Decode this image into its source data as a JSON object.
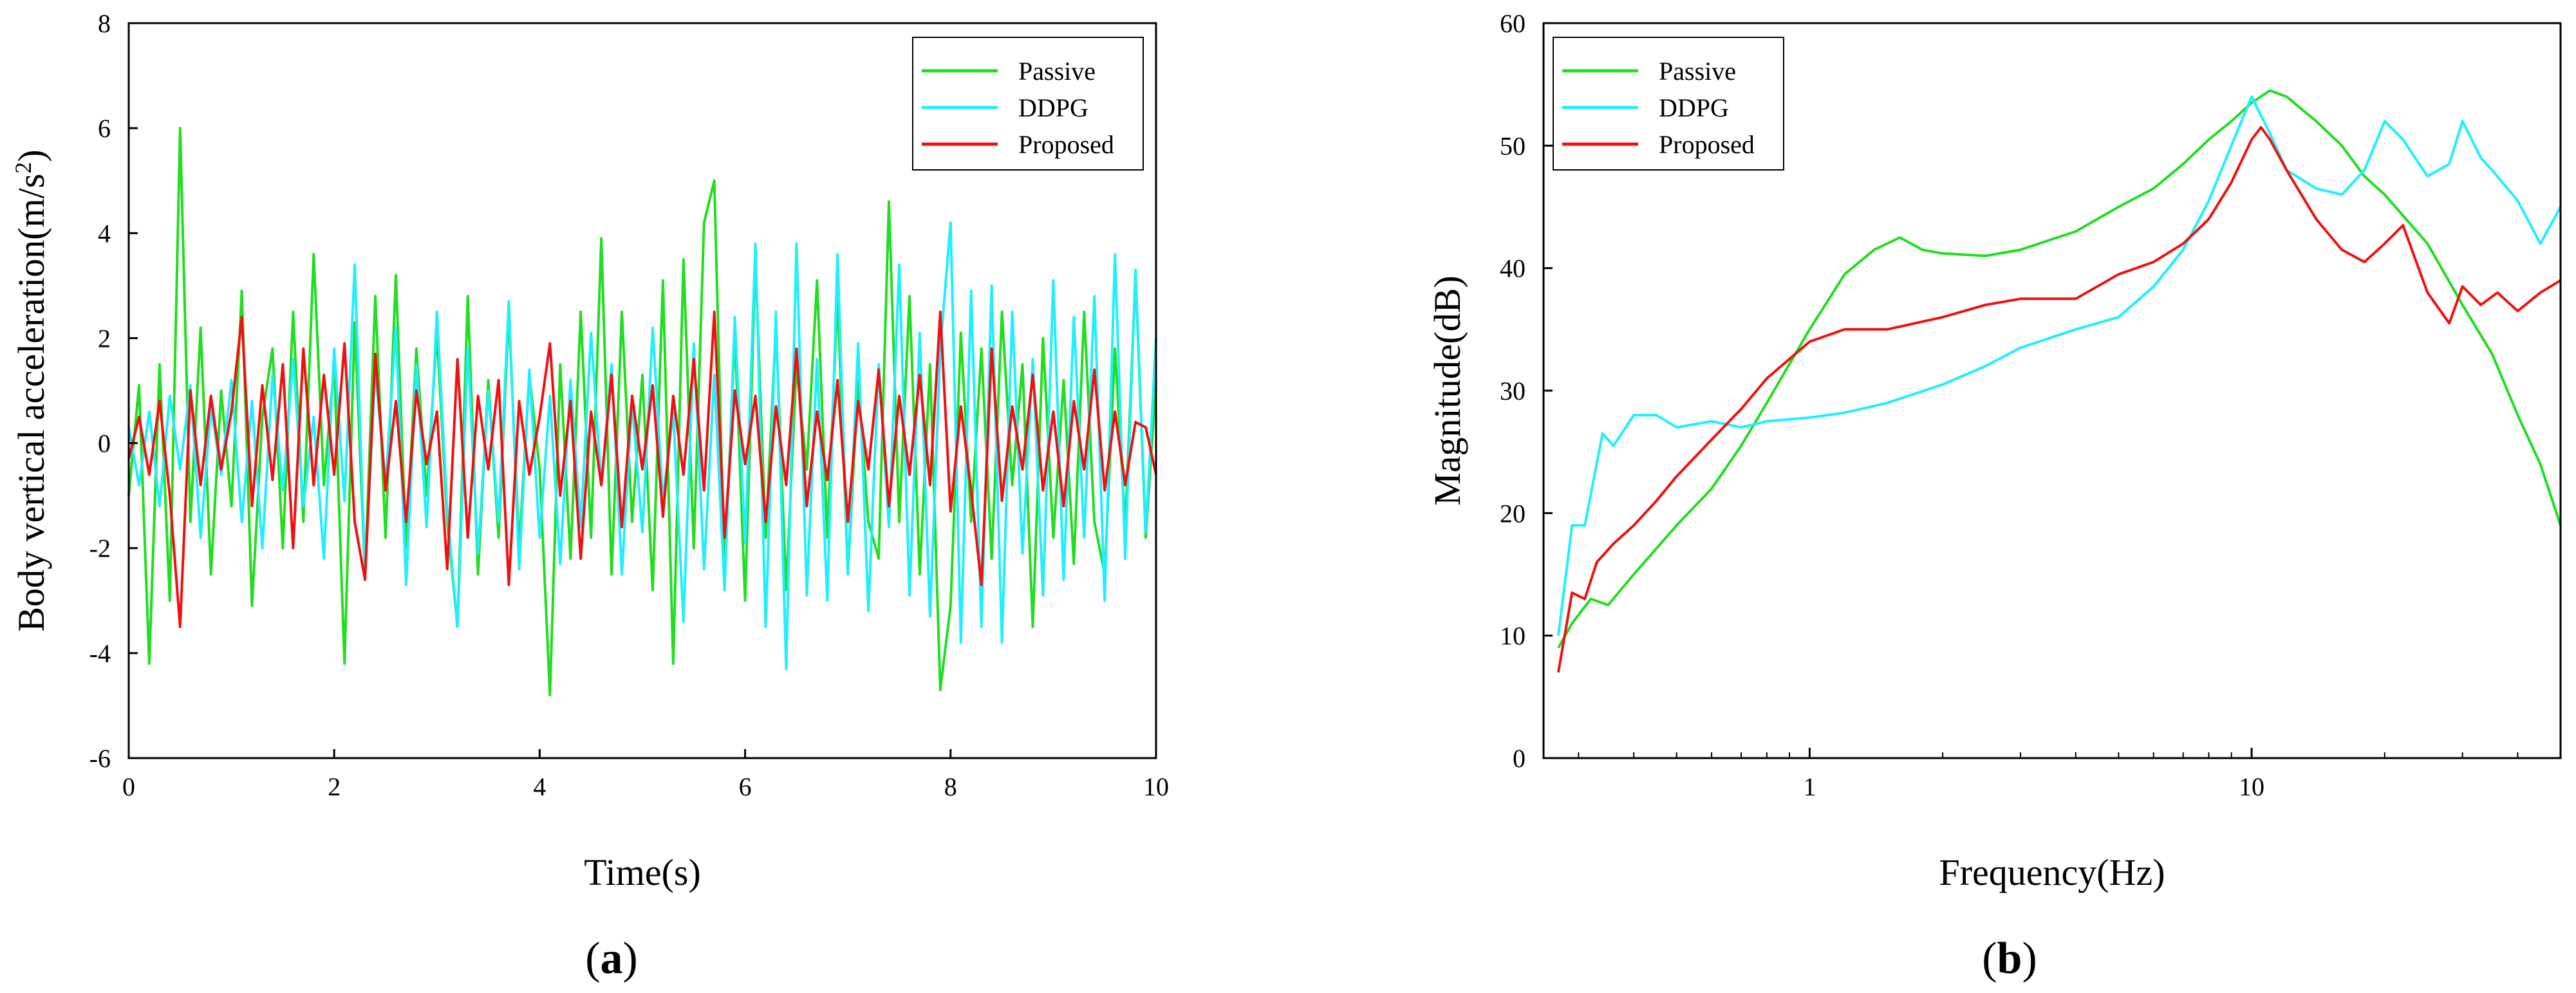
{
  "colors": {
    "passive": "#22dd22",
    "ddpg": "#22eeff",
    "proposed": "#ee1111"
  },
  "chart_data": [
    {
      "type": "line",
      "panel_label": "(a)",
      "panel_letter": "a",
      "xlabel": "Time(s)",
      "ylabel_main": "Body vertical acceleration(m/s",
      "ylabel_sup": "2",
      "ylabel_close": ")",
      "xlim": [
        0,
        10
      ],
      "ylim": [
        -6,
        8
      ],
      "xticks": [
        0,
        2,
        4,
        6,
        8,
        10
      ],
      "yticks": [
        -6,
        -4,
        -2,
        0,
        2,
        4,
        6,
        8
      ],
      "legend": [
        "Passive",
        "DDPG",
        "Proposed"
      ],
      "legend_position": "top-right",
      "series": [
        {
          "name": "Passive",
          "x": [
            0,
            0.1,
            0.2,
            0.3,
            0.4,
            0.5,
            0.6,
            0.7,
            0.8,
            0.9,
            1,
            1.1,
            1.2,
            1.3,
            1.4,
            1.5,
            1.6,
            1.7,
            1.8,
            1.9,
            2,
            2.1,
            2.2,
            2.3,
            2.4,
            2.5,
            2.6,
            2.7,
            2.8,
            2.9,
            3,
            3.1,
            3.2,
            3.3,
            3.4,
            3.5,
            3.6,
            3.7,
            3.8,
            3.9,
            4,
            4.1,
            4.2,
            4.3,
            4.4,
            4.5,
            4.6,
            4.7,
            4.8,
            4.9,
            5,
            5.1,
            5.2,
            5.3,
            5.4,
            5.5,
            5.6,
            5.7,
            5.8,
            5.9,
            6,
            6.1,
            6.2,
            6.3,
            6.4,
            6.5,
            6.6,
            6.7,
            6.8,
            6.9,
            7,
            7.1,
            7.2,
            7.3,
            7.4,
            7.5,
            7.6,
            7.7,
            7.8,
            7.9,
            8,
            8.1,
            8.2,
            8.3,
            8.4,
            8.5,
            8.6,
            8.7,
            8.8,
            8.9,
            9,
            9.1,
            9.2,
            9.3,
            9.4,
            9.5,
            9.6,
            9.7,
            9.8,
            9.9,
            10
          ],
          "values": [
            -1,
            1.1,
            -4.2,
            1.5,
            -3,
            6,
            -1.5,
            2.2,
            -2.5,
            1,
            -1.2,
            2.9,
            -3.1,
            0.5,
            1.8,
            -2,
            2.5,
            -1.5,
            3.6,
            -0.8,
            1.5,
            -4.2,
            2.3,
            -2.5,
            2.8,
            -1.8,
            3.2,
            -2,
            1.8,
            -1,
            2.1,
            -1.5,
            -3.5,
            2.8,
            -2.5,
            1.2,
            -1.8,
            2.5,
            -2,
            1.3,
            -0.5,
            -4.8,
            1.5,
            -2.2,
            2.5,
            -1.8,
            3.9,
            -2.5,
            2.5,
            -1.5,
            1.3,
            -2.8,
            3.1,
            -4.2,
            3.5,
            -2,
            4.2,
            5,
            -2.5,
            2.1,
            -3,
            3.5,
            -1.8,
            2.2,
            -2.8,
            1.5,
            -0.5,
            3.1,
            -1.8,
            2.8,
            -2.5,
            1.2,
            -1.5,
            -2.2,
            4.6,
            -1.5,
            2.8,
            -2.5,
            1.5,
            -4.7,
            -3.1,
            2.1,
            -1.5,
            1.8,
            -2.2,
            2.5,
            -0.8,
            1.5,
            -3.5,
            2,
            -1.8,
            1.2,
            -2.3,
            2.5,
            -1.5,
            -2.5,
            1.8,
            -1.6,
            3.2,
            -1.8,
            1.2
          ]
        },
        {
          "name": "DDPG",
          "x": [
            0,
            0.1,
            0.2,
            0.3,
            0.4,
            0.5,
            0.6,
            0.7,
            0.8,
            0.9,
            1,
            1.1,
            1.2,
            1.3,
            1.4,
            1.5,
            1.6,
            1.7,
            1.8,
            1.9,
            2,
            2.1,
            2.2,
            2.3,
            2.4,
            2.5,
            2.6,
            2.7,
            2.8,
            2.9,
            3,
            3.1,
            3.2,
            3.3,
            3.4,
            3.5,
            3.6,
            3.7,
            3.8,
            3.9,
            4,
            4.1,
            4.2,
            4.3,
            4.4,
            4.5,
            4.6,
            4.7,
            4.8,
            4.9,
            5,
            5.1,
            5.2,
            5.3,
            5.4,
            5.5,
            5.6,
            5.7,
            5.8,
            5.9,
            6,
            6.1,
            6.2,
            6.3,
            6.4,
            6.5,
            6.6,
            6.7,
            6.8,
            6.9,
            7,
            7.1,
            7.2,
            7.3,
            7.4,
            7.5,
            7.6,
            7.7,
            7.8,
            7.9,
            8,
            8.1,
            8.2,
            8.3,
            8.4,
            8.5,
            8.6,
            8.7,
            8.8,
            8.9,
            9,
            9.1,
            9.2,
            9.3,
            9.4,
            9.5,
            9.6,
            9.7,
            9.8,
            9.9,
            10
          ],
          "values": [
            0.3,
            -0.8,
            0.6,
            -1.2,
            0.9,
            -0.5,
            1.1,
            -1.8,
            0.7,
            -0.6,
            1.2,
            -1.5,
            0.8,
            -2,
            1.3,
            -0.9,
            1.6,
            -1.2,
            0.5,
            -2.2,
            1.8,
            -1.1,
            3.4,
            -2.5,
            1.4,
            -0.8,
            2.2,
            -2.7,
            1.5,
            -1.6,
            2.5,
            -1.3,
            -3.5,
            1.8,
            -2.1,
            1,
            -1.5,
            2.7,
            -2.4,
            1.4,
            -1.8,
            0.9,
            -2.3,
            1.2,
            -1.6,
            2.1,
            -0.8,
            1.5,
            -2.5,
            0.8,
            -1.7,
            2.2,
            -1.1,
            0.6,
            -3.4,
            1.9,
            -2.4,
            1.3,
            -2.8,
            2.4,
            -1.9,
            3.8,
            -3.5,
            2.5,
            -4.3,
            3.8,
            -2.9,
            1.6,
            -3,
            3.6,
            -2.5,
            1.9,
            -3.2,
            1.5,
            -1.6,
            3.4,
            -2.9,
            2.1,
            -3.3,
            1.8,
            4.2,
            -3.8,
            2.9,
            -3.5,
            3,
            -3.8,
            2.5,
            -2.1,
            1.6,
            -2.9,
            3.1,
            -2.6,
            2.4,
            -1.8,
            2.8,
            -3,
            3.6,
            -2.2,
            3.3,
            -1.7,
            2
          ]
        },
        {
          "name": "Proposed",
          "x": [
            0,
            0.1,
            0.2,
            0.3,
            0.4,
            0.5,
            0.6,
            0.7,
            0.8,
            0.9,
            1,
            1.1,
            1.2,
            1.3,
            1.4,
            1.5,
            1.6,
            1.7,
            1.8,
            1.9,
            2,
            2.1,
            2.2,
            2.3,
            2.4,
            2.5,
            2.6,
            2.7,
            2.8,
            2.9,
            3,
            3.1,
            3.2,
            3.3,
            3.4,
            3.5,
            3.6,
            3.7,
            3.8,
            3.9,
            4,
            4.1,
            4.2,
            4.3,
            4.4,
            4.5,
            4.6,
            4.7,
            4.8,
            4.9,
            5,
            5.1,
            5.2,
            5.3,
            5.4,
            5.5,
            5.6,
            5.7,
            5.8,
            5.9,
            6,
            6.1,
            6.2,
            6.3,
            6.4,
            6.5,
            6.6,
            6.7,
            6.8,
            6.9,
            7,
            7.1,
            7.2,
            7.3,
            7.4,
            7.5,
            7.6,
            7.7,
            7.8,
            7.9,
            8,
            8.1,
            8.2,
            8.3,
            8.4,
            8.5,
            8.6,
            8.7,
            8.8,
            8.9,
            9,
            9.1,
            9.2,
            9.3,
            9.4,
            9.5,
            9.6,
            9.7,
            9.8,
            9.9,
            10
          ],
          "values": [
            -0.3,
            0.5,
            -0.6,
            0.8,
            -1,
            -3.5,
            1,
            -0.8,
            0.9,
            -0.5,
            0.6,
            2.4,
            -1.2,
            1.1,
            -0.7,
            1.5,
            -2,
            1.8,
            -0.8,
            1.3,
            -0.6,
            1.9,
            -1.5,
            -2.6,
            1.7,
            -0.9,
            0.8,
            -1.5,
            1,
            -0.4,
            0.6,
            -2.4,
            1.6,
            -1.8,
            0.9,
            -0.5,
            1.2,
            -2.7,
            0.8,
            -0.6,
            0.5,
            1.9,
            -1,
            0.8,
            -2.2,
            0.6,
            -0.8,
            1.3,
            -1.6,
            0.9,
            -0.5,
            1.1,
            -1.4,
            0.9,
            -0.6,
            1.6,
            -0.9,
            2.5,
            -1.8,
            1,
            -0.4,
            0.9,
            -1.5,
            0.7,
            -0.8,
            1.8,
            -1.2,
            0.6,
            -0.7,
            1.2,
            -1.5,
            0.8,
            -0.5,
            1.4,
            -1.2,
            0.9,
            -0.6,
            1.3,
            -0.8,
            2.5,
            -1.3,
            0.7,
            -0.9,
            -2.7,
            1.8,
            -1.1,
            0.7,
            -0.5,
            1.3,
            -0.9,
            0.6,
            -1.2,
            0.8,
            -0.5,
            1.4,
            -0.9,
            0.6,
            -0.8,
            0.4,
            0.3,
            -0.6
          ]
        }
      ]
    },
    {
      "type": "line",
      "panel_label": "(b)",
      "panel_letter": "b",
      "xlabel": "Frequency(Hz)",
      "ylabel": "Magnitude(dB)",
      "xscale": "log",
      "xlim": [
        0.25,
        50
      ],
      "ylim": [
        0,
        60
      ],
      "xticks": [
        1,
        10
      ],
      "xtick_labels": [
        "1",
        "10"
      ],
      "yticks": [
        0,
        10,
        20,
        30,
        40,
        50,
        60
      ],
      "legend": [
        "Passive",
        "DDPG",
        "Proposed"
      ],
      "legend_position": "top-left",
      "series": [
        {
          "name": "Passive",
          "x": [
            0.27,
            0.29,
            0.32,
            0.35,
            0.4,
            0.5,
            0.6,
            0.7,
            0.8,
            1,
            1.2,
            1.4,
            1.6,
            1.8,
            2,
            2.5,
            3,
            4,
            5,
            6,
            7,
            8,
            9,
            10,
            11,
            12,
            14,
            16,
            18,
            20,
            25,
            30,
            35,
            40,
            45,
            50
          ],
          "values": [
            9,
            11,
            13,
            12.5,
            15,
            19,
            22,
            25.5,
            29,
            35,
            39.5,
            41.5,
            42.5,
            41.5,
            41.2,
            41,
            41.5,
            43,
            45,
            46.5,
            48.5,
            50.5,
            52,
            53.5,
            54.5,
            54,
            52,
            50,
            47.5,
            46,
            42,
            37,
            33,
            28,
            24,
            19
          ]
        },
        {
          "name": "DDPG",
          "x": [
            0.27,
            0.29,
            0.31,
            0.34,
            0.36,
            0.4,
            0.45,
            0.5,
            0.6,
            0.7,
            0.8,
            1,
            1.2,
            1.5,
            2,
            2.5,
            3,
            4,
            5,
            6,
            7,
            8,
            9,
            10,
            11,
            12,
            14,
            16,
            18,
            20,
            22,
            25,
            28,
            30,
            33,
            35,
            40,
            45,
            50
          ],
          "values": [
            10,
            19,
            19,
            26.5,
            25.5,
            28,
            28,
            27,
            27.5,
            27,
            27.5,
            27.8,
            28.2,
            29,
            30.5,
            32,
            33.5,
            35,
            36,
            38.5,
            41.5,
            45.5,
            50,
            54,
            51,
            48,
            46.5,
            46,
            48,
            52,
            50.5,
            47.5,
            48.5,
            52,
            49,
            48,
            45.5,
            42,
            45
          ]
        },
        {
          "name": "Proposed",
          "x": [
            0.27,
            0.29,
            0.31,
            0.33,
            0.36,
            0.4,
            0.45,
            0.5,
            0.6,
            0.7,
            0.8,
            1,
            1.2,
            1.5,
            2,
            2.5,
            3,
            4,
            5,
            6,
            7,
            8,
            9,
            10,
            10.5,
            11,
            12,
            14,
            16,
            18,
            20,
            22,
            25,
            28,
            30,
            33,
            36,
            40,
            45,
            50
          ],
          "values": [
            7,
            13.5,
            13,
            16,
            17.5,
            19,
            21,
            23,
            26,
            28.5,
            31,
            34,
            35,
            35,
            36,
            37,
            37.5,
            37.5,
            39.5,
            40.5,
            42,
            44,
            47,
            50.5,
            51.5,
            50.5,
            48,
            44,
            41.5,
            40.5,
            42,
            43.5,
            38,
            35.5,
            38.5,
            37,
            38,
            36.5,
            38,
            39
          ]
        }
      ]
    }
  ]
}
